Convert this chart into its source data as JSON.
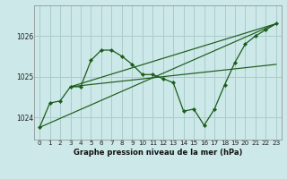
{
  "title": "Graphe pression niveau de la mer (hPa)",
  "background_color": "#cce8e8",
  "grid_color": "#aacccc",
  "line_color": "#1a5c1a",
  "marker_color": "#1a5c1a",
  "xlim": [
    -0.5,
    23.5
  ],
  "ylim": [
    1023.45,
    1026.75
  ],
  "yticks": [
    1024,
    1025,
    1026
  ],
  "xticks": [
    0,
    1,
    2,
    3,
    4,
    5,
    6,
    7,
    8,
    9,
    10,
    11,
    12,
    13,
    14,
    15,
    16,
    17,
    18,
    19,
    20,
    21,
    22,
    23
  ],
  "hours": [
    0,
    1,
    2,
    3,
    4,
    5,
    6,
    7,
    8,
    9,
    10,
    11,
    12,
    13,
    14,
    15,
    16,
    17,
    18,
    19,
    20,
    21,
    22,
    23
  ],
  "pressure": [
    1023.75,
    1024.35,
    1024.4,
    1024.75,
    1024.75,
    1025.4,
    1025.65,
    1025.65,
    1025.5,
    1025.3,
    1025.05,
    1025.05,
    1024.95,
    1024.85,
    1024.15,
    1024.2,
    1023.8,
    1024.2,
    1024.8,
    1025.35,
    1025.8,
    1026.0,
    1026.15,
    1026.3
  ],
  "trendline1_x": [
    0,
    23
  ],
  "trendline1_y": [
    1023.75,
    1026.3
  ],
  "trendline2_x": [
    3,
    23
  ],
  "trendline2_y": [
    1024.75,
    1025.3
  ],
  "trendline3_x": [
    3,
    23
  ],
  "trendline3_y": [
    1024.75,
    1026.3
  ]
}
